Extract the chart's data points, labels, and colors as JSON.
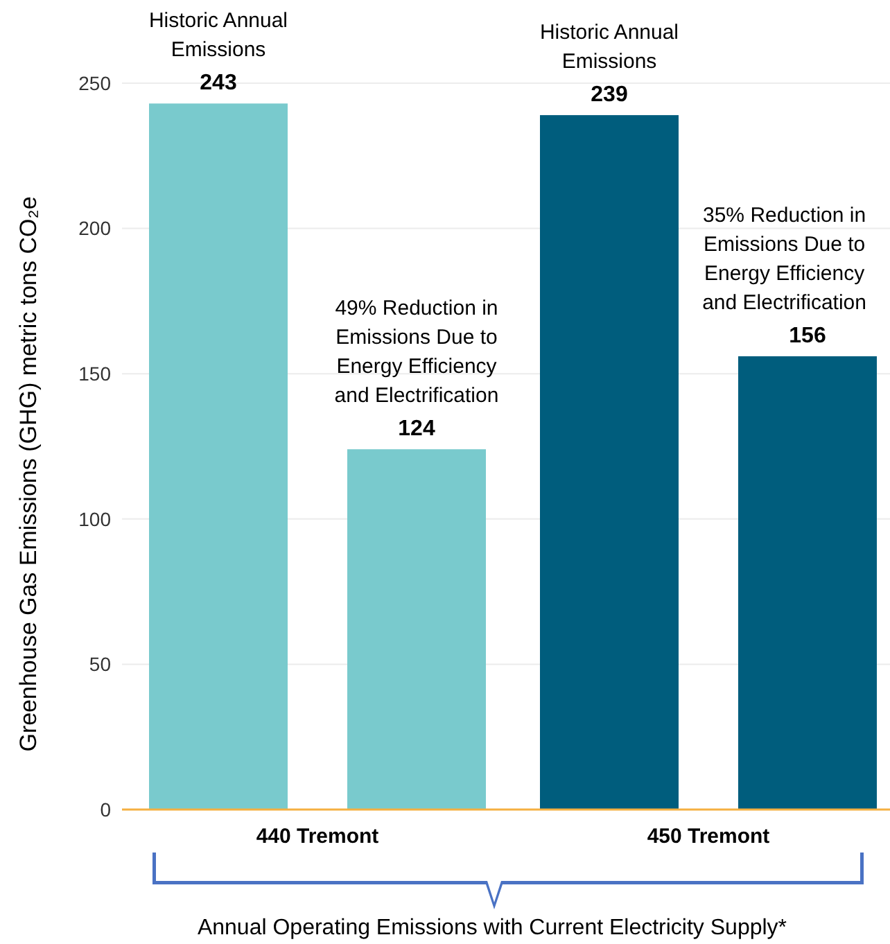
{
  "chart_data": {
    "type": "bar",
    "xlabel": "Annual Operating Emissions with Current Electricity Supply*",
    "ylabel": "Greenhouse Gas Emissions (GHG) metric tons CO₂e",
    "categories": [
      "440 Tremont",
      "450 Tremont"
    ],
    "series": [
      {
        "colors": [
          "#79cacd",
          "#005d7d"
        ],
        "values": [
          243,
          239
        ]
      },
      {
        "colors": [
          "#79cacd",
          "#005d7d"
        ],
        "values": [
          124,
          156
        ]
      }
    ],
    "ylim": [
      0,
      250
    ],
    "yticks": [
      0,
      50,
      100,
      150,
      200,
      250
    ],
    "grid": "y",
    "data_labels": true,
    "annotations": [
      "Historic Annual Emissions",
      "49% Reduction in Emissions Due to Energy Efficiency and Electrification",
      "Historic Annual Emissions",
      "35% Reduction in Emissions Due to Energy Efficiency and Electrification"
    ]
  }
}
